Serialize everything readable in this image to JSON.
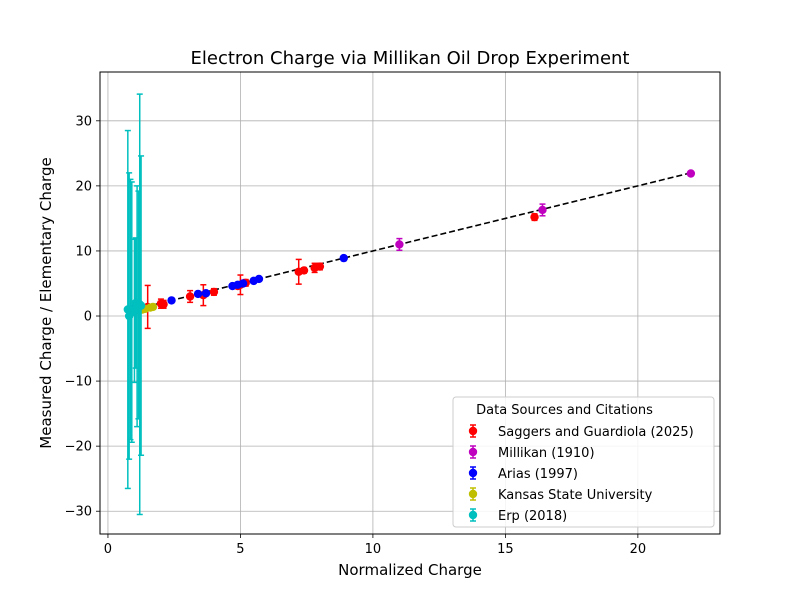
{
  "chart_data": {
    "type": "scatter",
    "title": "Electron Charge via Millikan Oil Drop Experiment",
    "xlabel": "Normalized Charge",
    "ylabel": "Measured Charge / Elementary Charge",
    "xlim": [
      -0.3,
      23.1
    ],
    "ylim": [
      -33.5,
      37.5
    ],
    "xticks": [
      0,
      5,
      10,
      15,
      20
    ],
    "xtick_labels": [
      "0",
      "5",
      "10",
      "15",
      "20"
    ],
    "yticks": [
      -30,
      -20,
      -10,
      0,
      10,
      20,
      30
    ],
    "ytick_labels": [
      "−30",
      "−20",
      "−10",
      "0",
      "10",
      "20",
      "30"
    ],
    "grid": true,
    "fit_line": {
      "x": [
        1,
        22
      ],
      "y": [
        1,
        22
      ],
      "style": "dashed",
      "color": "#000000"
    },
    "legend": {
      "title": "Data Sources and Citations",
      "location": "lower-right"
    },
    "series": [
      {
        "name": "Saggers and Guardiola (2025)",
        "color": "#ff0000",
        "points": [
          {
            "x": 1.0,
            "y": 1.0,
            "err": 0.4
          },
          {
            "x": 1.1,
            "y": 0.9,
            "err": 0.5
          },
          {
            "x": 1.5,
            "y": 1.4,
            "err": 3.3
          },
          {
            "x": 2.0,
            "y": 1.9,
            "err": 0.7
          },
          {
            "x": 2.1,
            "y": 1.8,
            "err": 0.6
          },
          {
            "x": 3.1,
            "y": 3.0,
            "err": 0.9
          },
          {
            "x": 3.6,
            "y": 3.2,
            "err": 1.6
          },
          {
            "x": 4.0,
            "y": 3.7,
            "err": 0.5
          },
          {
            "x": 4.9,
            "y": 4.6,
            "err": 0.4
          },
          {
            "x": 5.0,
            "y": 4.8,
            "err": 1.5
          },
          {
            "x": 5.2,
            "y": 5.1,
            "err": 0.5
          },
          {
            "x": 7.2,
            "y": 6.8,
            "err": 1.9
          },
          {
            "x": 7.4,
            "y": 7.0,
            "err": 0.4
          },
          {
            "x": 7.8,
            "y": 7.4,
            "err": 0.7
          },
          {
            "x": 8.0,
            "y": 7.6,
            "err": 0.5
          },
          {
            "x": 16.1,
            "y": 15.2,
            "err": 0.5
          }
        ]
      },
      {
        "name": "Millikan (1910)",
        "color": "#bf00bf",
        "points": [
          {
            "x": 11.0,
            "y": 11.0,
            "err": 0.9
          },
          {
            "x": 16.4,
            "y": 16.3,
            "err": 0.9
          },
          {
            "x": 22.0,
            "y": 21.9,
            "err": 0.3
          }
        ]
      },
      {
        "name": "Arias (1997)",
        "color": "#0000ff",
        "points": [
          {
            "x": 1.0,
            "y": 1.0,
            "err": 0.1
          },
          {
            "x": 2.4,
            "y": 2.4,
            "err": 0.2
          },
          {
            "x": 3.4,
            "y": 3.4,
            "err": 0.2
          },
          {
            "x": 3.7,
            "y": 3.5,
            "err": 0.3
          },
          {
            "x": 4.7,
            "y": 4.6,
            "err": 0.2
          },
          {
            "x": 4.9,
            "y": 4.8,
            "err": 0.2
          },
          {
            "x": 5.1,
            "y": 5.0,
            "err": 0.2
          },
          {
            "x": 5.5,
            "y": 5.4,
            "err": 0.2
          },
          {
            "x": 5.7,
            "y": 5.7,
            "err": 0.2
          },
          {
            "x": 8.9,
            "y": 8.9,
            "err": 0.2
          }
        ]
      },
      {
        "name": "Kansas State University",
        "color": "#bfbf00",
        "points": [
          {
            "x": 1.2,
            "y": 0.9,
            "err": 0.2
          },
          {
            "x": 1.3,
            "y": 1.0,
            "err": 0.2
          },
          {
            "x": 1.4,
            "y": 1.1,
            "err": 0.2
          },
          {
            "x": 1.6,
            "y": 1.3,
            "err": 0.2
          },
          {
            "x": 1.7,
            "y": 1.4,
            "err": 0.2
          }
        ]
      },
      {
        "name": "Erp (2018)",
        "color": "#00bfbf",
        "points": [
          {
            "x": 0.75,
            "y": 1.0,
            "err": 27.5
          },
          {
            "x": 0.8,
            "y": 0.0,
            "err": 22.0
          },
          {
            "x": 0.85,
            "y": 1.0,
            "err": 20.0
          },
          {
            "x": 0.9,
            "y": 0.6,
            "err": 20.0
          },
          {
            "x": 1.0,
            "y": 0.8,
            "err": 11.0
          },
          {
            "x": 1.05,
            "y": 2.0,
            "err": 10.0
          },
          {
            "x": 1.1,
            "y": 1.5,
            "err": 18.5
          },
          {
            "x": 1.15,
            "y": 1.7,
            "err": 17.5
          },
          {
            "x": 1.2,
            "y": 1.8,
            "err": 32.3
          },
          {
            "x": 1.25,
            "y": 1.6,
            "err": 23.0
          }
        ]
      }
    ]
  }
}
